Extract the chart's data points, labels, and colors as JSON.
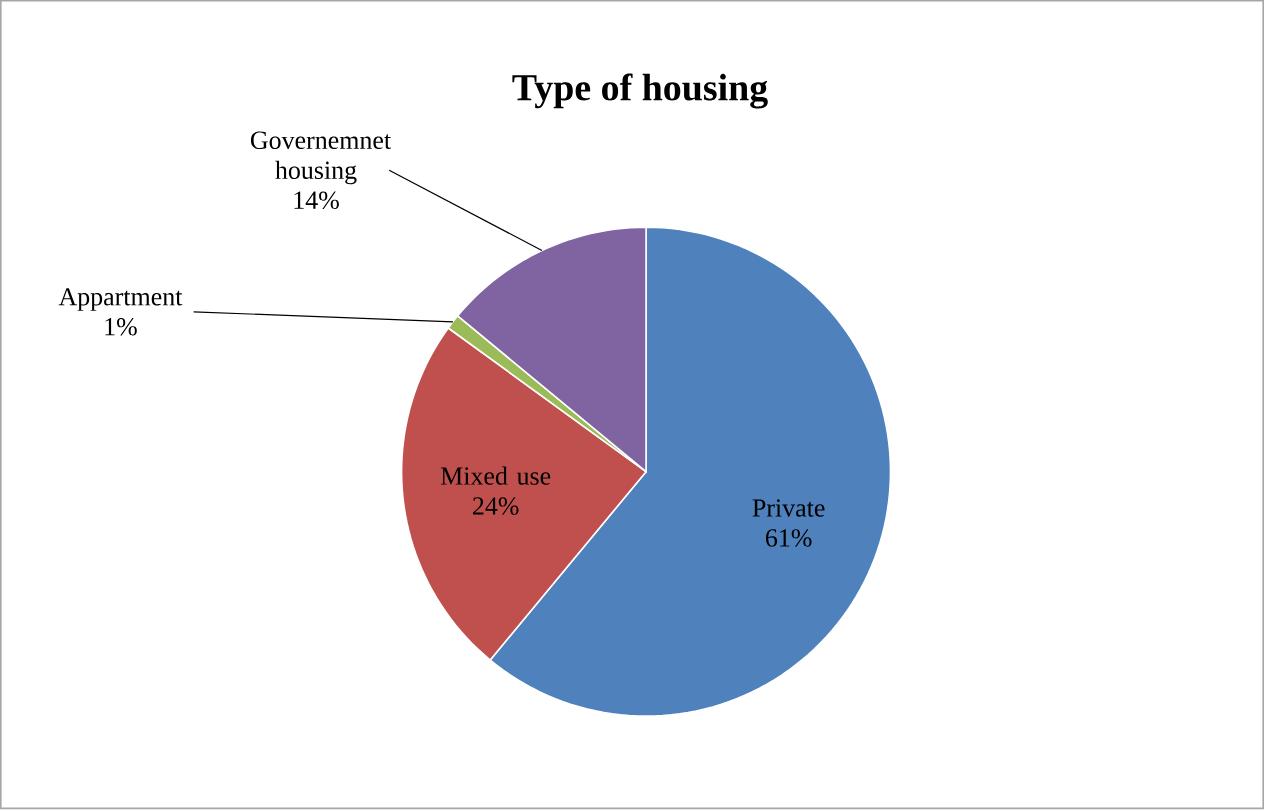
{
  "chart_data": {
    "type": "pie",
    "title": "Type of housing",
    "categories": [
      "Private",
      "Mixed use",
      "Appartment",
      "Governemnet housing"
    ],
    "values": [
      61,
      24,
      1,
      14
    ],
    "value_labels": [
      "61%",
      "24%",
      "1%",
      "14%"
    ],
    "colors": [
      "#4f81bd",
      "#c0504d",
      "#9bbb59",
      "#8064a2"
    ]
  }
}
